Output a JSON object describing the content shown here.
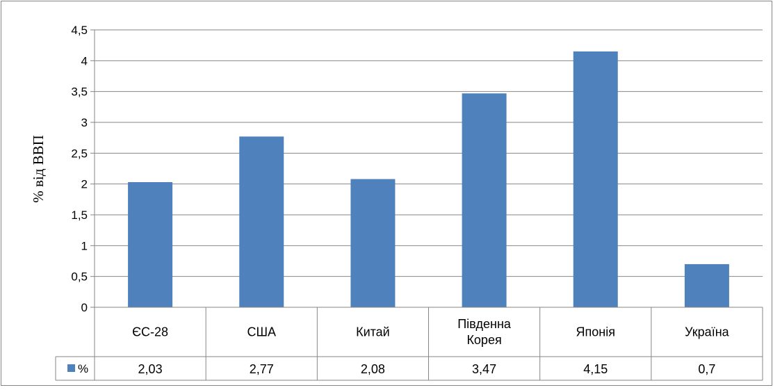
{
  "chart_data": {
    "type": "bar",
    "ylabel": "% від ВВП",
    "categories": [
      [
        "ЄС-28"
      ],
      [
        "США"
      ],
      [
        "Китай"
      ],
      [
        "Південна",
        "Корея"
      ],
      [
        "Японія"
      ],
      [
        "Україна"
      ]
    ],
    "series": [
      {
        "name": "%",
        "values": [
          2.03,
          2.77,
          2.08,
          3.47,
          4.15,
          0.7
        ]
      }
    ],
    "value_labels": [
      "2,03",
      "2,77",
      "2,08",
      "3,47",
      "4,15",
      "0,7"
    ],
    "ylim": [
      0,
      4.5
    ],
    "yticks": [
      0,
      0.5,
      1,
      1.5,
      2,
      2.5,
      3,
      3.5,
      4,
      4.5
    ],
    "ytick_labels": [
      "0",
      "0,5",
      "1",
      "1,5",
      "2",
      "2,5",
      "3",
      "3,5",
      "4",
      "4,5"
    ],
    "grid": true,
    "legend": "data-table",
    "colors": {
      "bar": "#4f81bd",
      "grid": "#868686",
      "axis": "#868686",
      "border": "#868686"
    }
  }
}
